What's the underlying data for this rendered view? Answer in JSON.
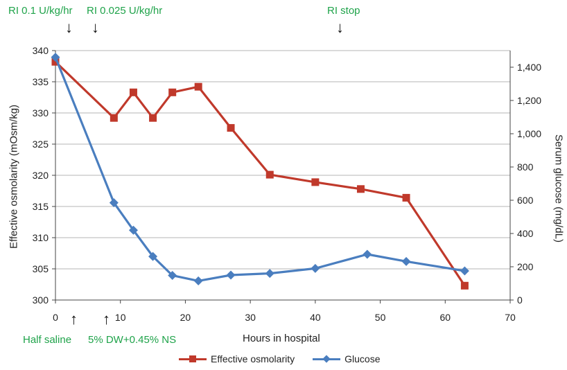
{
  "annotations": {
    "top": [
      {
        "text": "RI 0.1 U/kg/hr"
      },
      {
        "text": "RI 0.025 U/kg/hr"
      },
      {
        "text": "RI stop"
      }
    ],
    "bottom": [
      {
        "text": "Half saline"
      },
      {
        "text": "5% DW+0.45% NS"
      }
    ],
    "down_arrow": "↓",
    "up_arrow": "↑"
  },
  "chart_data": {
    "type": "line",
    "xlabel": "Hours in hospital",
    "ylabel_left": "Effective osmolarity (mOsm/kg)",
    "ylabel_right": "Serum glucose (mg/dL)",
    "xlim": [
      0,
      70
    ],
    "x_ticks": [
      "0",
      "10",
      "20",
      "30",
      "40",
      "50",
      "60",
      "70"
    ],
    "ylim_left": [
      300,
      340
    ],
    "y_ticks_left": [
      "300",
      "305",
      "310",
      "315",
      "320",
      "325",
      "330",
      "335",
      "340"
    ],
    "ylim_right": [
      0,
      1500
    ],
    "y_ticks_right": [
      "0",
      "200",
      "400",
      "600",
      "800",
      "1,000",
      "1,200",
      "1,400"
    ],
    "grid": "horizontal",
    "legend_position": "bottom",
    "series": [
      {
        "name": "Effective osmolarity",
        "axis": "left",
        "color": "#c0392b",
        "marker": "square",
        "x": [
          0,
          9,
          12,
          15,
          18,
          22,
          27,
          33,
          40,
          47,
          54,
          63
        ],
        "y": [
          338.2,
          329.2,
          333.3,
          329.2,
          333.3,
          334.2,
          327.6,
          320.1,
          318.9,
          317.8,
          316.4,
          302.3
        ]
      },
      {
        "name": "Glucose",
        "axis": "right",
        "color": "#4a7ebf",
        "marker": "diamond",
        "x": [
          0,
          9,
          12,
          15,
          18,
          22,
          27,
          33,
          40,
          48,
          54,
          63
        ],
        "y": [
          1460,
          585,
          420,
          262,
          148,
          115,
          150,
          160,
          190,
          275,
          232,
          175
        ]
      }
    ]
  }
}
